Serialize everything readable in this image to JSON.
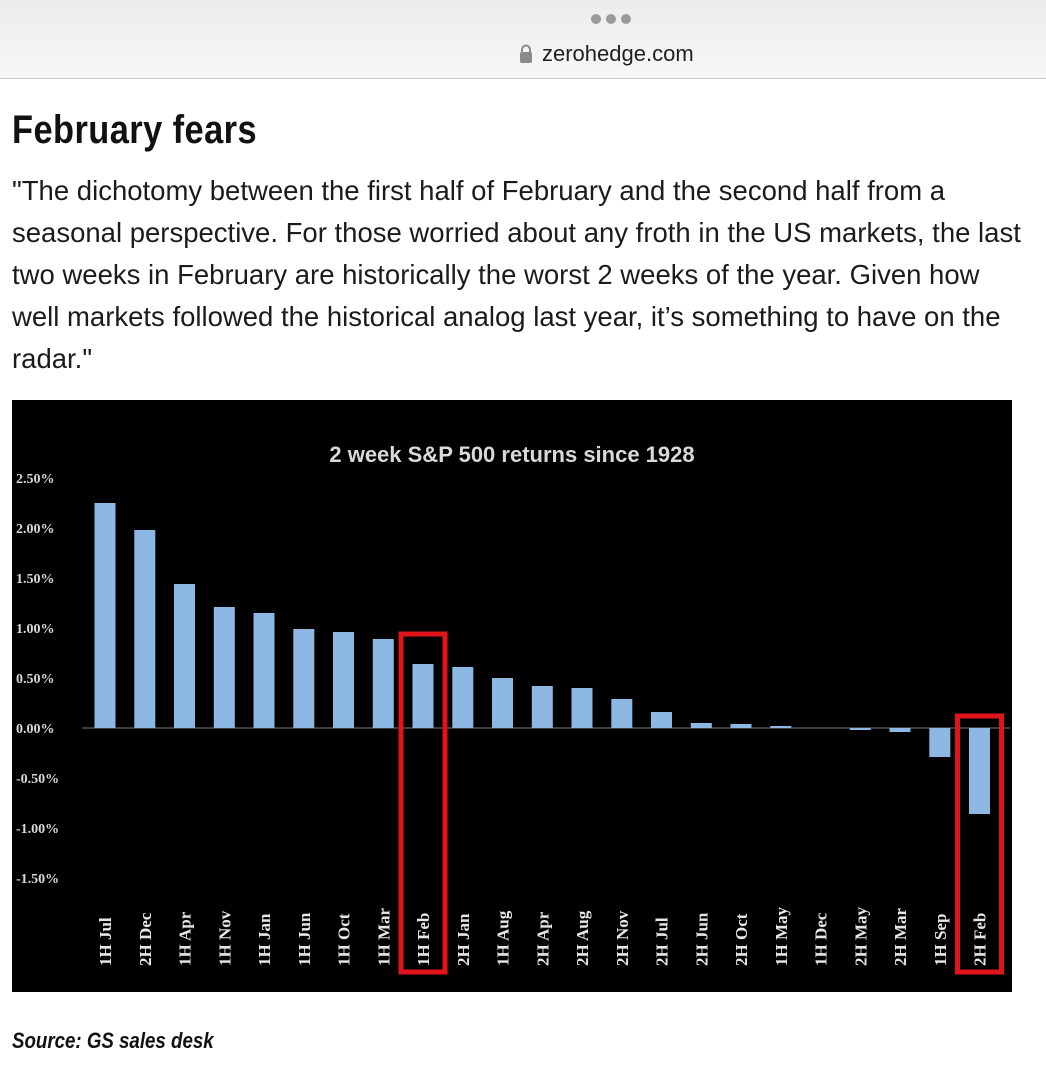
{
  "browser": {
    "url": "zerohedge.com"
  },
  "article": {
    "title": "February fears",
    "quote": "\"The dichotomy between the first half of February and the second half from a seasonal perspective. For those worried about any froth in the US markets, the last two weeks in February are historically the worst 2 weeks of the year. Given how well markets followed the historical analog last year, it’s something to have on the radar.\"",
    "source": "Source: GS sales desk"
  },
  "colors": {
    "bar": "#8db8e3",
    "highlight": "#e1141b",
    "background": "#000000",
    "text": "#d9d9d9"
  },
  "chart_data": {
    "type": "bar",
    "title": "2 week S&P 500 returns since 1928",
    "xlabel": "",
    "ylabel": "",
    "ylim": [
      -1.5,
      2.5
    ],
    "yticks": [
      "2.50%",
      "2.00%",
      "1.50%",
      "1.00%",
      "0.50%",
      "0.00%",
      "-0.50%",
      "-1.00%",
      "-1.50%"
    ],
    "categories": [
      "1H Jul",
      "2H Dec",
      "1H Apr",
      "1H Nov",
      "1H Jan",
      "1H Jun",
      "1H Oct",
      "1H Mar",
      "1H Feb",
      "2H Jan",
      "1H Aug",
      "2H Apr",
      "2H Aug",
      "2H Nov",
      "2H Jul",
      "2H Jun",
      "2H Oct",
      "1H May",
      "1H Dec",
      "2H May",
      "2H Mar",
      "1H Sep",
      "2H Feb"
    ],
    "values": [
      2.25,
      1.98,
      1.44,
      1.21,
      1.15,
      0.99,
      0.96,
      0.89,
      0.64,
      0.61,
      0.5,
      0.42,
      0.4,
      0.29,
      0.16,
      0.05,
      0.04,
      0.02,
      0.0,
      -0.02,
      -0.04,
      -0.29,
      -0.86
    ],
    "highlighted": [
      "1H Feb",
      "2H Feb"
    ]
  }
}
